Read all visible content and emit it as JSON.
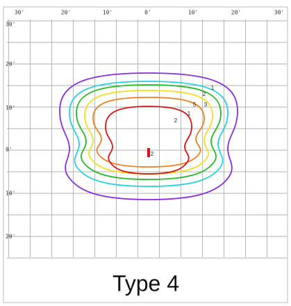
{
  "top_axis": [
    "30'",
    "20'",
    "10'",
    "0'",
    "10'",
    "20'",
    "30'"
  ],
  "left_axis": [
    "30'",
    "20'",
    "10'",
    "0'",
    "10'",
    "20'"
  ],
  "contour_labels": [
    "1",
    "2",
    "5",
    "3",
    "1",
    "2",
    "2"
  ],
  "caption": "Type 4"
}
